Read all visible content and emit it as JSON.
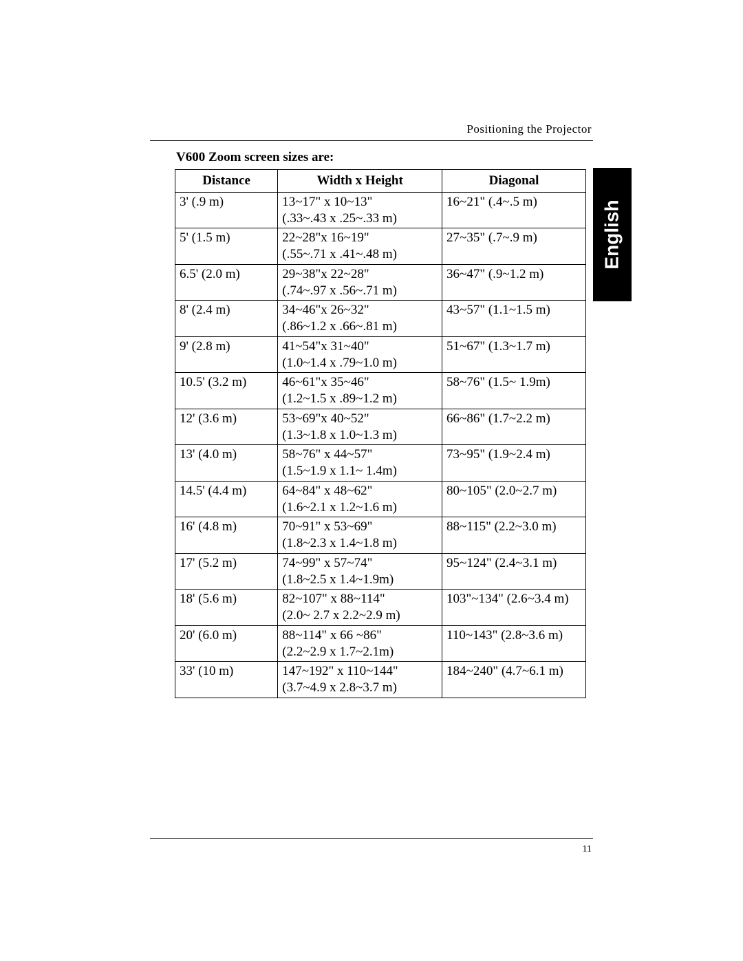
{
  "running_head": "Positioning the Projector",
  "language_tab": "English",
  "table_title": "V600 Zoom screen sizes are:",
  "page_number": "11",
  "columns": {
    "distance": "Distance",
    "width_height": "Width x Height",
    "diagonal": "Diagonal"
  },
  "rows": [
    {
      "distance": "3' (.9 m)",
      "wh_line1": "13~17\" x 10~13\"",
      "wh_line2": "(.33~.43 x .25~.33 m)",
      "diagonal": "16~21\" (.4~.5 m)"
    },
    {
      "distance": "5' (1.5 m)",
      "wh_line1": "22~28\"x 16~19\"",
      "wh_line2": "(.55~.71 x .41~.48 m)",
      "diagonal": "27~35\" (.7~.9 m)"
    },
    {
      "distance": "6.5' (2.0 m)",
      "wh_line1": "29~38\"x 22~28\"",
      "wh_line2": "(.74~.97 x .56~.71 m)",
      "diagonal": "36~47\" (.9~1.2 m)"
    },
    {
      "distance": "8' (2.4 m)",
      "wh_line1": "34~46\"x 26~32\"",
      "wh_line2": "(.86~1.2 x .66~.81 m)",
      "diagonal": "43~57\" (1.1~1.5 m)"
    },
    {
      "distance": "9' (2.8 m)",
      "wh_line1": "41~54\"x 31~40\"",
      "wh_line2": "(1.0~1.4 x .79~1.0 m)",
      "diagonal": "51~67\" (1.3~1.7 m)"
    },
    {
      "distance": "10.5' (3.2 m)",
      "wh_line1": "46~61\"x 35~46\"",
      "wh_line2": "(1.2~1.5 x .89~1.2 m)",
      "diagonal": "58~76\" (1.5~ 1.9m)"
    },
    {
      "distance": "12' (3.6 m)",
      "wh_line1": "53~69\"x 40~52\"",
      "wh_line2": "(1.3~1.8 x 1.0~1.3 m)",
      "diagonal": "66~86\" (1.7~2.2 m)"
    },
    {
      "distance": "13' (4.0 m)",
      "wh_line1": "58~76\" x 44~57\"",
      "wh_line2": "(1.5~1.9 x 1.1~ 1.4m)",
      "diagonal": "73~95\" (1.9~2.4 m)"
    },
    {
      "distance": "14.5' (4.4 m)",
      "wh_line1": "64~84\" x 48~62\"",
      "wh_line2": "(1.6~2.1 x 1.2~1.6 m)",
      "diagonal": "80~105\" (2.0~2.7 m)"
    },
    {
      "distance": "16' (4.8 m)",
      "wh_line1": "70~91\" x 53~69\"",
      "wh_line2": "(1.8~2.3 x 1.4~1.8 m)",
      "diagonal": "88~115\" (2.2~3.0 m)"
    },
    {
      "distance": "17' (5.2 m)",
      "wh_line1": "74~99\" x  57~74\"",
      "wh_line2": "(1.8~2.5 x 1.4~1.9m)",
      "diagonal": "95~124\" (2.4~3.1 m)"
    },
    {
      "distance": "18' (5.6 m)",
      "wh_line1": "82~107\" x  88~114\"",
      "wh_line2": "(2.0~ 2.7 x  2.2~2.9 m)",
      "diagonal": "103\"~134\" (2.6~3.4 m)"
    },
    {
      "distance": "20' (6.0 m)",
      "wh_line1": "88~114\" x 66 ~86\"",
      "wh_line2": "(2.2~2.9 x 1.7~2.1m)",
      "diagonal": "110~143\" (2.8~3.6 m)"
    },
    {
      "distance": "33' (10 m)",
      "wh_line1": "147~192\" x 110~144\"",
      "wh_line2": "(3.7~4.9 x 2.8~3.7 m)",
      "diagonal": "184~240\" (4.7~6.1 m)"
    }
  ]
}
